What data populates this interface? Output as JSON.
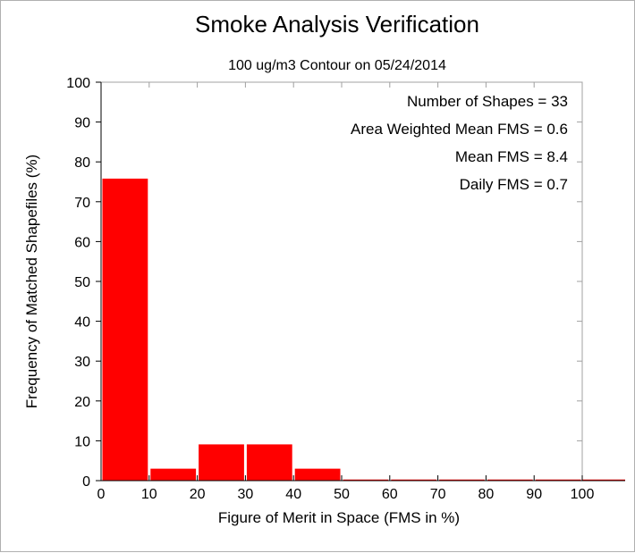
{
  "chart_data": {
    "type": "bar",
    "title": "Smoke Analysis Verification",
    "subtitle": "100 ug/m3 Contour on 05/24/2014",
    "xlabel": "Figure of Merit in Space (FMS in %)",
    "ylabel": "Frequency of Matched Shapefiles (%)",
    "xlim": [
      0,
      100
    ],
    "ylim": [
      0,
      100
    ],
    "xticks": [
      "0",
      "10",
      "20",
      "30",
      "40",
      "50",
      "60",
      "70",
      "80",
      "90",
      "100"
    ],
    "yticks": [
      "0",
      "10",
      "20",
      "30",
      "40",
      "50",
      "60",
      "70",
      "80",
      "90",
      "100"
    ],
    "bins": [
      [
        0,
        10
      ],
      [
        10,
        20
      ],
      [
        20,
        30
      ],
      [
        30,
        40
      ],
      [
        40,
        50
      ],
      [
        50,
        60
      ],
      [
        60,
        70
      ],
      [
        70,
        80
      ],
      [
        80,
        90
      ],
      [
        90,
        100
      ]
    ],
    "values": [
      75.8,
      3,
      9.1,
      9.1,
      3,
      0,
      0,
      0,
      0,
      0
    ],
    "bar_color": "#ff0000",
    "grid": false,
    "annotations": [
      "Number of Shapes = 33",
      "Area Weighted Mean FMS = 0.6",
      "Mean FMS = 8.4",
      "Daily FMS = 0.7"
    ]
  }
}
